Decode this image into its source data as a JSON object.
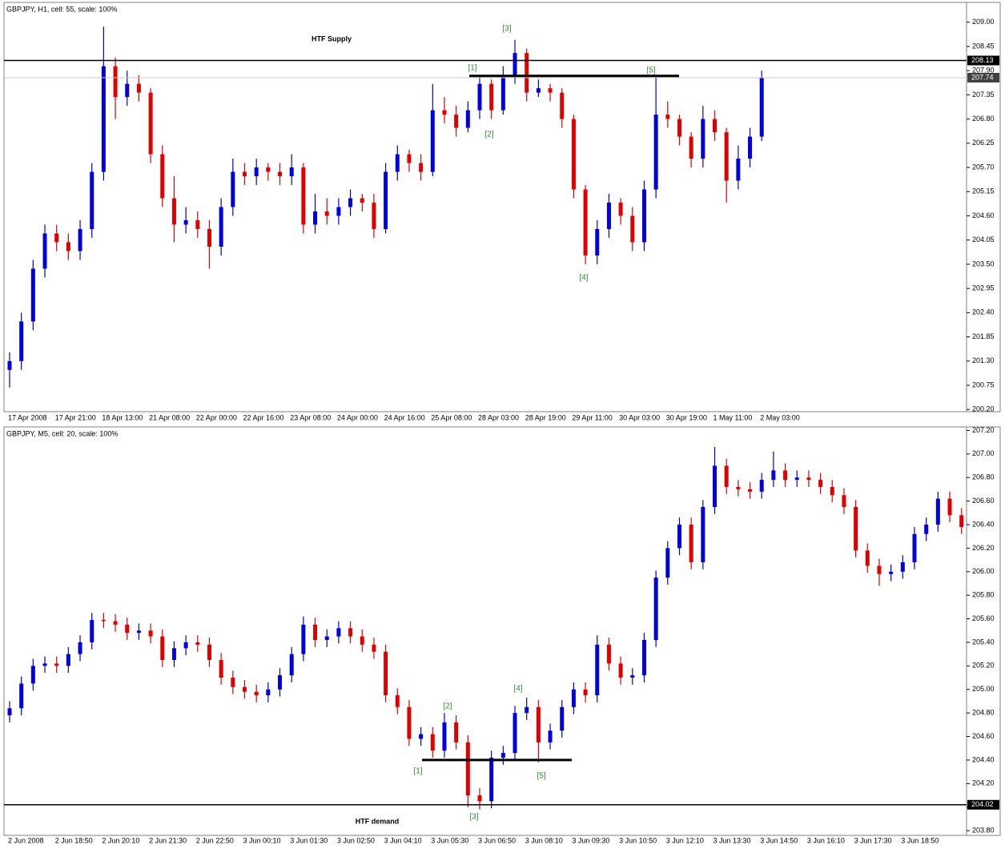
{
  "chart_data": [
    {
      "type": "candlestick",
      "title": "GBPJPY, H1, cell: 55, scale: 100%",
      "up_color": "#0000e0",
      "down_color": "#e00000",
      "categories": [
        "17 Apr 2008",
        null,
        null,
        null,
        "17 Apr 21:00",
        null,
        null,
        null,
        "18 Apr 13:00",
        null,
        null,
        null,
        "21 Apr 08:00",
        null,
        null,
        null,
        "22 Apr 00:00",
        null,
        null,
        null,
        "22 Apr 16:00",
        null,
        null,
        null,
        "23 Apr 08:00",
        null,
        null,
        null,
        "24 Apr 00:00",
        null,
        null,
        null,
        "24 Apr 16:00",
        null,
        null,
        null,
        "25 Apr 08:00",
        null,
        null,
        null,
        "28 Apr 03:00",
        null,
        null,
        null,
        "28 Apr 19:00",
        null,
        null,
        null,
        "29 Apr 11:00",
        null,
        null,
        null,
        "30 Apr 03:00",
        null,
        null,
        null,
        "30 Apr 19:00",
        null,
        null,
        null,
        "1 May 11:00",
        null,
        null,
        null,
        "2 May 03:00"
      ],
      "open": [
        201.1,
        201.3,
        202.2,
        203.4,
        204.2,
        204.0,
        203.8,
        204.3,
        205.6,
        208.0,
        207.3,
        207.6,
        207.4,
        206.0,
        205.0,
        204.4,
        204.5,
        204.3,
        203.9,
        204.8,
        205.6,
        205.5,
        205.7,
        205.6,
        205.5,
        205.7,
        204.4,
        204.7,
        204.6,
        204.8,
        205.0,
        204.9,
        204.3,
        205.6,
        206.0,
        205.8,
        205.6,
        207.0,
        206.9,
        206.6,
        207.0,
        207.6,
        207.0,
        207.8,
        208.3,
        207.4,
        207.5,
        207.4,
        206.8,
        205.2,
        203.7,
        204.3,
        204.9,
        204.6,
        204.0,
        205.2,
        206.9,
        206.8,
        206.4,
        205.9,
        206.8,
        206.5,
        205.4,
        205.9,
        206.4
      ],
      "high": [
        201.5,
        202.4,
        203.6,
        204.4,
        204.4,
        204.2,
        204.5,
        205.8,
        208.9,
        208.2,
        207.9,
        207.8,
        207.5,
        206.2,
        205.5,
        204.8,
        204.7,
        204.5,
        205.0,
        205.9,
        205.8,
        205.9,
        205.8,
        205.8,
        206.0,
        205.8,
        205.1,
        205.0,
        205.0,
        205.2,
        205.1,
        205.1,
        205.8,
        206.2,
        206.1,
        206.0,
        207.6,
        207.3,
        207.1,
        207.2,
        207.8,
        207.7,
        208.0,
        208.6,
        208.4,
        207.7,
        207.6,
        207.5,
        206.9,
        205.3,
        204.5,
        205.1,
        205.0,
        204.8,
        205.4,
        207.8,
        207.2,
        206.9,
        206.5,
        207.1,
        207.0,
        206.6,
        206.2,
        206.6,
        207.9
      ],
      "low": [
        200.7,
        201.1,
        202.0,
        203.2,
        203.8,
        203.6,
        203.6,
        204.1,
        205.4,
        206.8,
        207.1,
        207.2,
        205.8,
        204.8,
        204.0,
        204.2,
        204.1,
        203.4,
        203.7,
        204.6,
        205.3,
        205.3,
        205.4,
        205.3,
        205.3,
        204.2,
        204.2,
        204.4,
        204.4,
        204.6,
        204.7,
        204.1,
        204.2,
        205.4,
        205.6,
        205.4,
        205.5,
        206.7,
        206.4,
        206.5,
        206.8,
        206.8,
        206.9,
        207.6,
        207.2,
        207.3,
        207.2,
        206.6,
        205.0,
        203.5,
        203.5,
        204.1,
        204.4,
        203.8,
        203.8,
        205.0,
        206.6,
        206.2,
        205.7,
        205.7,
        206.3,
        204.9,
        205.2,
        205.7,
        206.3
      ],
      "close": [
        201.3,
        202.2,
        203.4,
        204.2,
        204.0,
        203.8,
        204.3,
        205.6,
        208.0,
        207.3,
        207.6,
        207.4,
        206.0,
        205.0,
        204.4,
        204.5,
        204.3,
        203.9,
        204.8,
        205.6,
        205.5,
        205.7,
        205.6,
        205.5,
        205.7,
        204.4,
        204.7,
        204.6,
        204.8,
        205.0,
        204.9,
        204.3,
        205.6,
        206.0,
        205.8,
        205.6,
        207.0,
        206.9,
        206.6,
        207.0,
        207.6,
        207.0,
        207.8,
        208.3,
        207.4,
        207.5,
        207.4,
        206.8,
        205.2,
        203.7,
        204.3,
        204.9,
        204.6,
        204.0,
        205.2,
        206.9,
        206.8,
        206.4,
        205.9,
        206.8,
        206.5,
        205.4,
        205.9,
        206.4,
        207.74
      ],
      "ylim": [
        200.15,
        209.45
      ],
      "yticks": [
        {
          "value": 209.0,
          "label": "209.00"
        },
        208.45,
        {
          "value": 207.9,
          "label": "207.90"
        },
        207.35,
        {
          "value": 206.8,
          "label": "206.80"
        },
        206.25,
        {
          "value": 205.7,
          "label": "205.70"
        },
        205.15,
        {
          "value": 204.6,
          "label": "204.60"
        },
        204.05,
        {
          "value": 203.5,
          "label": "203.50"
        },
        202.95,
        {
          "value": 202.4,
          "label": "202.40"
        },
        201.85,
        {
          "value": 201.3,
          "label": "201.30"
        },
        200.75,
        {
          "value": 200.2,
          "label": "200.20"
        }
      ],
      "price_lines": [
        {
          "value": 208.13,
          "color": "#000000"
        },
        {
          "value": 207.74,
          "color": "#c8c8c8"
        }
      ],
      "level_segments": [
        {
          "value": 207.78
        }
      ],
      "annotations": [
        {
          "text": "HTF Supply",
          "color": "#000000"
        },
        {
          "text": "[1]",
          "color": "#2e8b2e"
        },
        {
          "text": "[2]",
          "color": "#2e8b2e"
        },
        {
          "text": "[3]",
          "color": "#2e8b2e"
        },
        {
          "text": "[4]",
          "color": "#2e8b2e"
        },
        {
          "text": "[5]",
          "color": "#2e8b2e"
        }
      ]
    },
    {
      "type": "candlestick",
      "title": "GBPJPY, M5, cell: 20, scale: 100%",
      "up_color": "#0000e0",
      "down_color": "#e00000",
      "categories": [
        "2 Jun 2008",
        null,
        null,
        null,
        "2 Jun 18:50",
        null,
        null,
        null,
        "2 Jun 20:10",
        null,
        null,
        null,
        "2 Jun 21:30",
        null,
        null,
        null,
        "2 Jun 22:50",
        null,
        null,
        null,
        "3 Jun 00:10",
        null,
        null,
        null,
        "3 Jun 01:30",
        null,
        null,
        null,
        "3 Jun 02:50",
        null,
        null,
        null,
        "3 Jun 04:10",
        null,
        null,
        null,
        "3 Jun 05:30",
        null,
        null,
        null,
        "3 Jun 06:50",
        null,
        null,
        null,
        "3 Jun 08:10",
        null,
        null,
        null,
        "3 Jun 09:30",
        null,
        null,
        null,
        "3 Jun 10:50",
        null,
        null,
        null,
        "3 Jun 12:10",
        null,
        null,
        null,
        "3 Jun 13:30",
        null,
        null,
        null,
        "3 Jun 14:50",
        null,
        null,
        null,
        "3 Jun 16:10",
        null,
        null,
        null,
        "3 Jun 17:30",
        null,
        null,
        null,
        "3 Jun 18:50",
        null,
        null,
        null,
        null,
        null
      ],
      "open": [
        204.78,
        204.84,
        205.05,
        205.2,
        205.22,
        205.2,
        205.3,
        205.4,
        205.59,
        205.58,
        205.55,
        205.48,
        205.5,
        205.45,
        205.25,
        205.35,
        205.4,
        205.38,
        205.25,
        205.1,
        205.02,
        204.98,
        204.95,
        205.0,
        205.12,
        205.3,
        205.55,
        205.42,
        205.45,
        205.52,
        205.45,
        205.38,
        205.32,
        204.95,
        204.85,
        204.58,
        204.62,
        204.48,
        204.72,
        204.55,
        204.1,
        204.05,
        204.42,
        204.46,
        204.8,
        204.85,
        204.55,
        204.65,
        204.85,
        205.0,
        204.95,
        205.38,
        205.22,
        205.1,
        205.12,
        205.42,
        205.95,
        206.2,
        206.4,
        206.08,
        206.55,
        206.9,
        206.72,
        206.7,
        206.68,
        206.78,
        206.86,
        206.78,
        206.8,
        206.78,
        206.72,
        206.65,
        206.55,
        206.18,
        206.05,
        205.98,
        206.0,
        206.08,
        206.32,
        206.4,
        206.62,
        206.48
      ],
      "high": [
        204.9,
        205.11,
        205.26,
        205.28,
        205.28,
        205.36,
        205.46,
        205.65,
        205.65,
        205.64,
        205.61,
        205.56,
        205.56,
        205.51,
        205.41,
        205.46,
        205.46,
        205.44,
        205.31,
        205.16,
        205.08,
        205.04,
        205.06,
        205.18,
        205.36,
        205.62,
        205.61,
        205.51,
        205.58,
        205.58,
        205.51,
        205.44,
        205.38,
        205.01,
        204.91,
        204.68,
        204.68,
        204.8,
        204.78,
        204.61,
        204.16,
        204.48,
        204.52,
        204.86,
        204.93,
        204.91,
        204.71,
        204.91,
        205.06,
        205.06,
        205.46,
        205.44,
        205.28,
        205.18,
        205.48,
        206.01,
        206.26,
        206.46,
        206.46,
        206.61,
        207.06,
        206.96,
        206.78,
        206.76,
        206.84,
        207.02,
        206.92,
        206.86,
        206.86,
        206.84,
        206.78,
        206.71,
        206.61,
        206.24,
        206.11,
        206.06,
        206.14,
        206.38,
        206.46,
        206.68,
        206.68,
        206.54
      ],
      "low": [
        204.72,
        204.78,
        204.99,
        205.14,
        205.14,
        205.14,
        205.24,
        205.34,
        205.52,
        205.49,
        205.42,
        205.42,
        205.39,
        205.19,
        205.19,
        205.29,
        205.32,
        205.19,
        205.04,
        204.96,
        204.92,
        204.89,
        204.89,
        204.94,
        205.06,
        205.24,
        205.36,
        205.36,
        205.39,
        205.39,
        205.32,
        205.26,
        204.89,
        204.79,
        204.52,
        204.52,
        204.42,
        204.42,
        204.49,
        204.0,
        203.98,
        203.99,
        204.36,
        204.4,
        204.74,
        204.38,
        204.49,
        204.59,
        204.79,
        204.89,
        204.89,
        205.16,
        205.04,
        205.04,
        205.06,
        205.36,
        205.89,
        206.14,
        206.02,
        206.02,
        206.49,
        206.66,
        206.64,
        206.62,
        206.62,
        206.72,
        206.72,
        206.72,
        206.72,
        206.66,
        206.59,
        206.49,
        206.12,
        205.99,
        205.88,
        205.92,
        205.94,
        206.02,
        206.26,
        206.34,
        206.42,
        206.32
      ],
      "close": [
        204.84,
        205.05,
        205.2,
        205.22,
        205.2,
        205.3,
        205.4,
        205.59,
        205.58,
        205.55,
        205.48,
        205.5,
        205.45,
        205.25,
        205.35,
        205.4,
        205.38,
        205.25,
        205.1,
        205.02,
        204.98,
        204.95,
        205.0,
        205.12,
        205.3,
        205.55,
        205.42,
        205.45,
        205.52,
        205.45,
        205.38,
        205.32,
        204.95,
        204.85,
        204.58,
        204.62,
        204.48,
        204.72,
        204.55,
        204.1,
        204.05,
        204.42,
        204.46,
        204.8,
        204.85,
        204.55,
        204.65,
        204.85,
        205.0,
        204.95,
        205.38,
        205.22,
        205.1,
        205.12,
        205.42,
        205.95,
        206.2,
        206.4,
        206.08,
        206.55,
        206.9,
        206.72,
        206.7,
        206.68,
        206.78,
        206.86,
        206.78,
        206.8,
        206.78,
        206.72,
        206.65,
        206.55,
        206.18,
        206.05,
        205.98,
        206.0,
        206.08,
        206.32,
        206.4,
        206.62,
        206.48,
        206.38
      ],
      "ylim": [
        203.76,
        207.23
      ],
      "yticks": [
        {
          "value": 207.2,
          "label": "207.20"
        },
        {
          "value": 207.0,
          "label": "207.00"
        },
        {
          "value": 206.8,
          "label": "206.80"
        },
        {
          "value": 206.6,
          "label": "206.60"
        },
        {
          "value": 206.4,
          "label": "206.40"
        },
        {
          "value": 206.2,
          "label": "206.20"
        },
        {
          "value": 206.0,
          "label": "206.00"
        },
        {
          "value": 205.8,
          "label": "205.80"
        },
        {
          "value": 205.6,
          "label": "205.60"
        },
        {
          "value": 205.4,
          "label": "205.40"
        },
        {
          "value": 205.2,
          "label": "205.20"
        },
        {
          "value": 205.0,
          "label": "205.00"
        },
        {
          "value": 204.8,
          "label": "204.80"
        },
        {
          "value": 204.6,
          "label": "204.60"
        },
        {
          "value": 204.4,
          "label": "204.40"
        },
        {
          "value": 204.2,
          "label": "204.20"
        },
        {
          "value": 204.0,
          "label": "204.00"
        },
        {
          "value": 203.8,
          "label": "203.80"
        }
      ],
      "price_lines": [
        {
          "value": 204.02,
          "color": "#000000"
        }
      ],
      "level_segments": [
        {
          "value": 204.4
        }
      ],
      "annotations": [
        {
          "text": "HTF demand",
          "color": "#000000"
        },
        {
          "text": "[1]",
          "color": "#2e8b2e"
        },
        {
          "text": "[2]",
          "color": "#2e8b2e"
        },
        {
          "text": "[3]",
          "color": "#2e8b2e"
        },
        {
          "text": "[4]",
          "color": "#2e8b2e"
        },
        {
          "text": "[5]",
          "color": "#2e8b2e"
        }
      ]
    }
  ]
}
